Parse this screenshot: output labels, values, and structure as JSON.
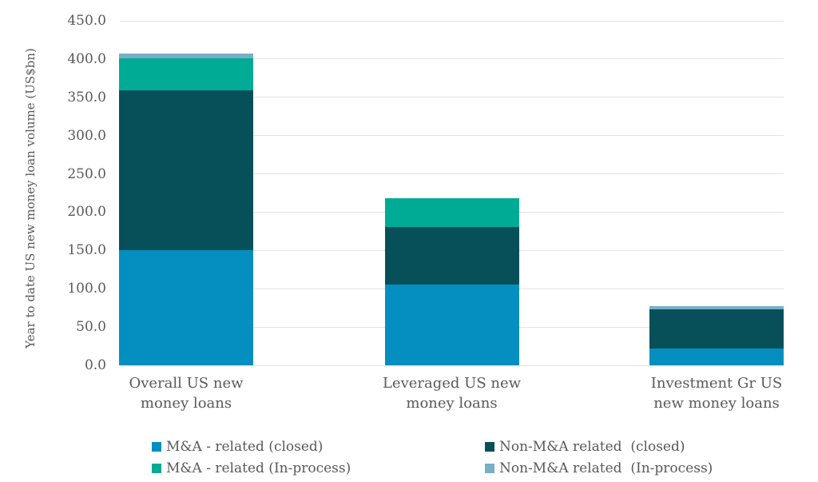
{
  "chart_data": {
    "type": "bar",
    "stacked": true,
    "title": "",
    "xlabel": "",
    "ylabel": "Year to date US new money loan volume (US$bn)",
    "ylim": [
      0,
      450
    ],
    "ytick_step": 50,
    "ytick_decimals": 1,
    "grid": "horizontal",
    "legend_position": "bottom",
    "background_color": "#ffffff",
    "text_color": "#595959",
    "grid_color": "#e3e3e3",
    "categories": [
      {
        "name": "Overall US new money loans",
        "lines": [
          "Overall US new",
          "money loans"
        ]
      },
      {
        "name": "Leveraged US new money loans",
        "lines": [
          "Leveraged US new",
          "money loans"
        ]
      },
      {
        "name": "Investment Gr US new money loans",
        "lines": [
          "Investment Gr US",
          "new money loans"
        ]
      }
    ],
    "series": [
      {
        "name": "M&A - related (closed)",
        "color": "#048fc0",
        "values": [
          150,
          105,
          22
        ]
      },
      {
        "name": "Non-M&A related  (closed)",
        "color": "#085059",
        "values": [
          209,
          76,
          51
        ]
      },
      {
        "name": "M&A - related (In-process)",
        "color": "#00ab96",
        "values": [
          42,
          37,
          0
        ]
      },
      {
        "name": "Non-M&A related  (In-process)",
        "color": "#78afc5",
        "values": [
          6,
          0,
          4
        ]
      }
    ]
  }
}
